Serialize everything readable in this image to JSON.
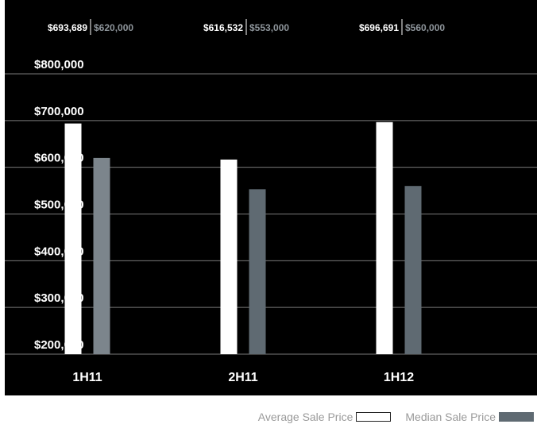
{
  "chart_data": {
    "type": "bar",
    "categories": [
      "1H11",
      "2H11",
      "1H12"
    ],
    "series": [
      {
        "name": "Average Sale Price",
        "values": [
          693689,
          616532,
          696691
        ],
        "color": "#ffffff"
      },
      {
        "name": "Median Sale Price",
        "values": [
          620000,
          553000,
          560000
        ],
        "color": "#5f6a72"
      }
    ],
    "median_bar_colors": [
      "#7c858c",
      "#5f6a72",
      "#5f6a72"
    ],
    "value_labels": [
      {
        "average": "$693,689",
        "median": "$620,000"
      },
      {
        "average": "$616,532",
        "median": "$553,000"
      },
      {
        "average": "$696,691",
        "median": "$560,000"
      }
    ],
    "yticks": [
      "$200,000",
      "$300,000",
      "$400,000",
      "$500,000",
      "$600,000",
      "$700,000",
      "$800,000"
    ],
    "ytick_values": [
      200000,
      300000,
      400000,
      500000,
      600000,
      700000,
      800000
    ],
    "ylim": [
      200000,
      800000
    ],
    "grid": true,
    "legend_position": "bottom-right",
    "background": "#000000"
  },
  "legend": {
    "average_label": "Average Sale Price",
    "median_label": "Median Sale Price"
  }
}
